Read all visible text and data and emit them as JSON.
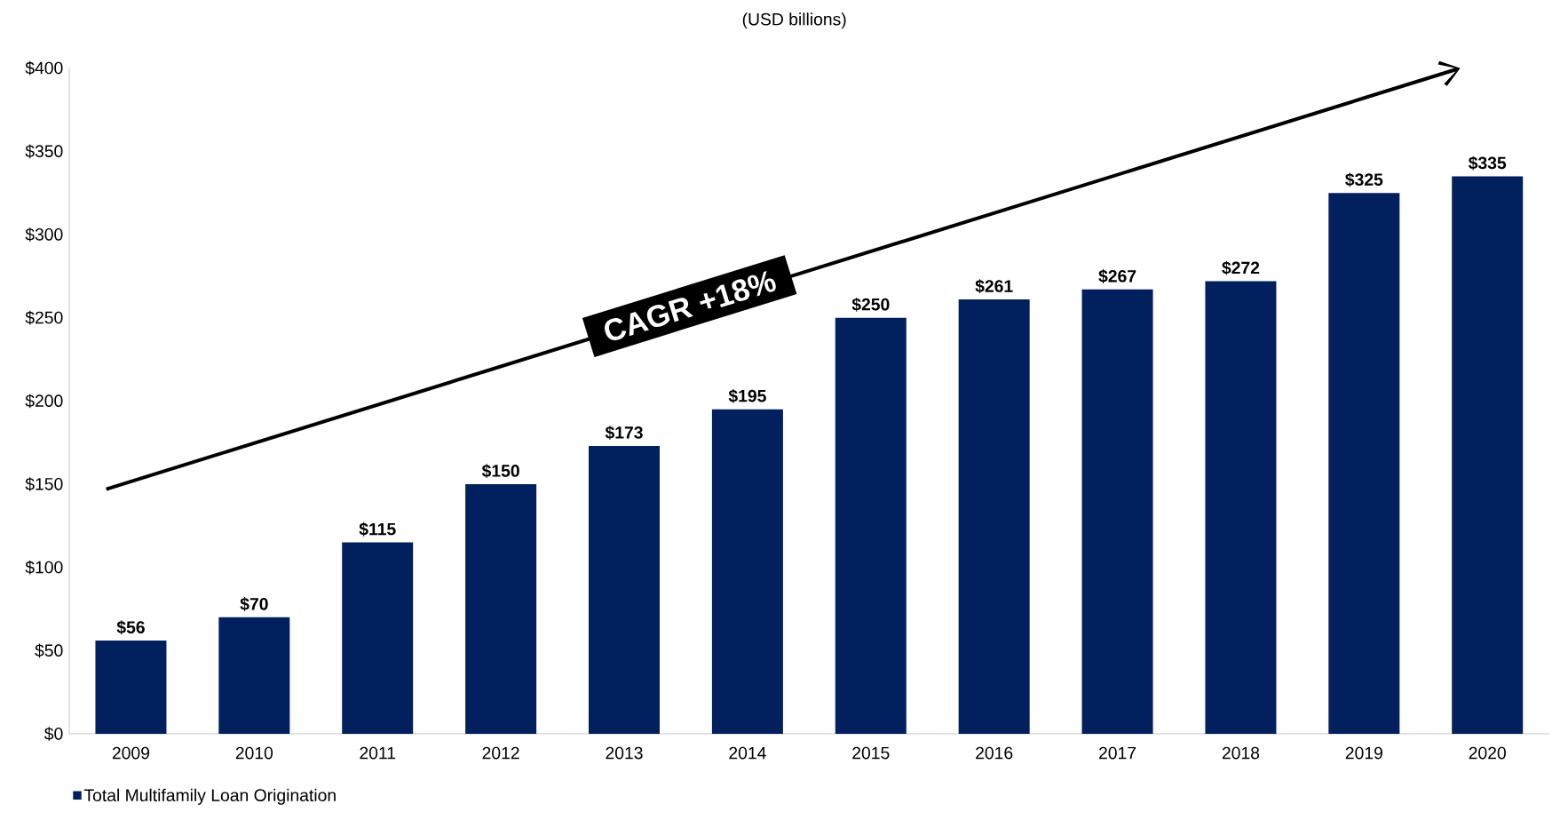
{
  "chart_data": {
    "type": "bar",
    "subtitle": "(USD billions)",
    "categories": [
      "2009",
      "2010",
      "2011",
      "2012",
      "2013",
      "2014",
      "2015",
      "2016",
      "2017",
      "2018",
      "2019",
      "2020"
    ],
    "series": [
      {
        "name": "Total Multifamily Loan Origination",
        "color": "#021f5e",
        "values": [
          56,
          70,
          115,
          150,
          173,
          195,
          250,
          261,
          267,
          272,
          325,
          335
        ],
        "value_labels": [
          "$56",
          "$70",
          "$115",
          "$150",
          "$173",
          "$195",
          "$250",
          "$261",
          "$267",
          "$272",
          "$325",
          "$335"
        ]
      }
    ],
    "ylim": [
      0,
      400
    ],
    "yticks": [
      {
        "value": 0,
        "label": "$0"
      },
      {
        "value": 50,
        "label": "$50"
      },
      {
        "value": 100,
        "label": "$100"
      },
      {
        "value": 150,
        "label": "$150"
      },
      {
        "value": 200,
        "label": "$200"
      },
      {
        "value": 250,
        "label": "$250"
      },
      {
        "value": 300,
        "label": "$300"
      },
      {
        "value": 350,
        "label": "$350"
      },
      {
        "value": 400,
        "label": "$400"
      }
    ],
    "annotations": [
      "CAGR +18%"
    ],
    "grid": false,
    "legend": "bottom left"
  }
}
